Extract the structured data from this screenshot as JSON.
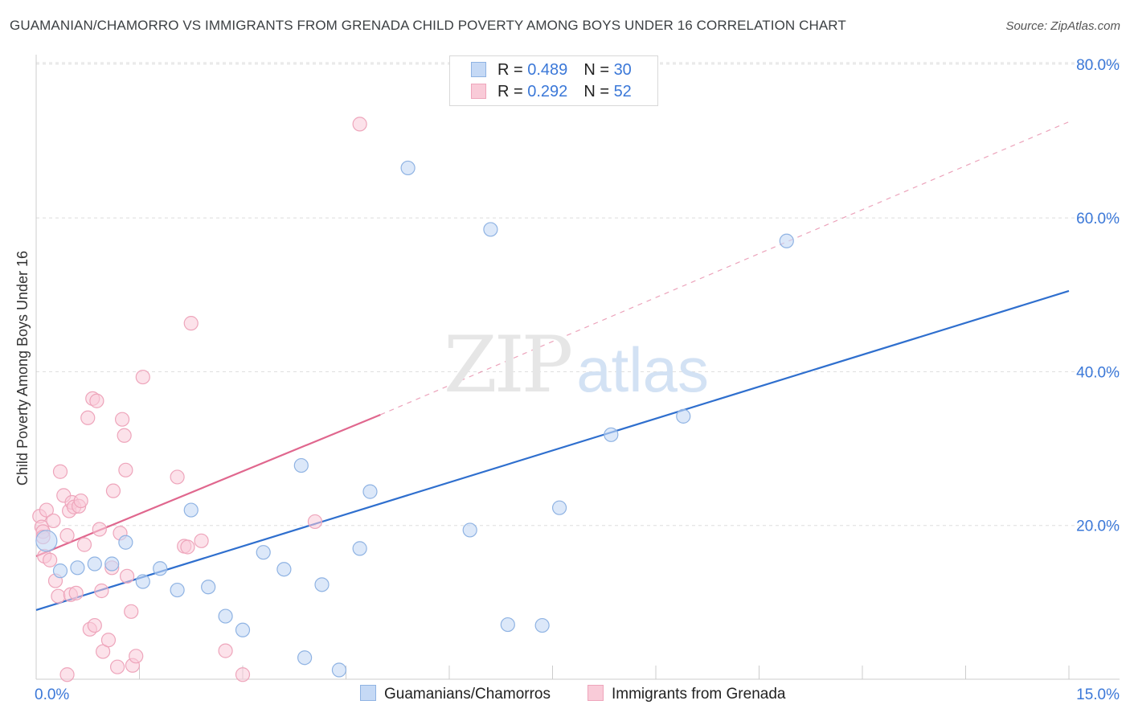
{
  "title": "GUAMANIAN/CHAMORRO VS IMMIGRANTS FROM GRENADA CHILD POVERTY AMONG BOYS UNDER 16 CORRELATION CHART",
  "source": "Source: ZipAtlas.com",
  "watermark": {
    "zip": "ZIP",
    "atlas": "atlas"
  },
  "legend": {
    "r_label": "R = ",
    "n_label": "N = ",
    "series": [
      {
        "r": "0.489",
        "n": "30"
      },
      {
        "r": "0.292",
        "n": "52"
      }
    ]
  },
  "bottom_legend": [
    "Guamanians/Chamorros",
    "Immigrants from Grenada"
  ],
  "colors": {
    "blue_fill": "#c5d9f5",
    "blue_stroke": "#8fb3e3",
    "blue_line": "#2f6fce",
    "pink_fill": "#f9cbd8",
    "pink_stroke": "#eea5bb",
    "pink_line": "#e0678e",
    "tick_label": "#3b78d8",
    "grid": "#dddddd"
  },
  "chart_data": {
    "type": "scatter",
    "title": "GUAMANIAN/CHAMORRO VS IMMIGRANTS FROM GRENADA CHILD POVERTY AMONG BOYS UNDER 16 CORRELATION CHART",
    "xlabel": "",
    "ylabel": "Child Poverty Among Boys Under 16",
    "xlim": [
      0,
      15
    ],
    "ylim": [
      0,
      80
    ],
    "x_tick_labels": [
      "0.0%",
      "15.0%"
    ],
    "y_ticks": [
      20,
      40,
      60,
      80
    ],
    "y_tick_labels": [
      "20.0%",
      "40.0%",
      "60.0%",
      "80.0%"
    ],
    "grid": true,
    "legend_position": "top-center",
    "series": [
      {
        "name": "Guamanians/Chamorros",
        "color": "#c5d9f5",
        "points": [
          [
            0.15,
            18.0
          ],
          [
            0.35,
            14.1
          ],
          [
            0.6,
            14.5
          ],
          [
            0.85,
            15.0
          ],
          [
            1.1,
            15.0
          ],
          [
            1.3,
            17.8
          ],
          [
            1.55,
            12.7
          ],
          [
            1.8,
            14.4
          ],
          [
            2.05,
            11.6
          ],
          [
            2.25,
            22.0
          ],
          [
            2.5,
            12.0
          ],
          [
            2.75,
            8.2
          ],
          [
            3.0,
            6.4
          ],
          [
            3.3,
            16.5
          ],
          [
            3.6,
            14.3
          ],
          [
            3.85,
            27.8
          ],
          [
            3.9,
            2.8
          ],
          [
            4.15,
            12.3
          ],
          [
            4.4,
            1.2
          ],
          [
            4.7,
            17.0
          ],
          [
            4.85,
            24.4
          ],
          [
            5.4,
            66.5
          ],
          [
            6.3,
            19.4
          ],
          [
            6.6,
            58.5
          ],
          [
            6.85,
            7.1
          ],
          [
            7.35,
            7.0
          ],
          [
            7.6,
            22.3
          ],
          [
            8.35,
            31.8
          ],
          [
            9.4,
            34.2
          ],
          [
            10.9,
            57.0
          ]
        ],
        "trend": {
          "x": [
            0,
            15
          ],
          "y": [
            9.0,
            50.5
          ],
          "style": "solid"
        }
      },
      {
        "name": "Immigrants from Grenada",
        "color": "#f9cbd8",
        "points": [
          [
            0.05,
            21.2
          ],
          [
            0.08,
            19.8
          ],
          [
            0.1,
            19.2
          ],
          [
            0.12,
            16.0
          ],
          [
            0.15,
            22.0
          ],
          [
            0.2,
            15.5
          ],
          [
            0.25,
            20.6
          ],
          [
            0.28,
            12.8
          ],
          [
            0.32,
            10.8
          ],
          [
            0.35,
            27.0
          ],
          [
            0.4,
            23.9
          ],
          [
            0.45,
            18.7
          ],
          [
            0.48,
            21.9
          ],
          [
            0.5,
            11.0
          ],
          [
            0.52,
            23.0
          ],
          [
            0.55,
            22.4
          ],
          [
            0.58,
            11.2
          ],
          [
            0.62,
            22.5
          ],
          [
            0.65,
            23.2
          ],
          [
            0.7,
            17.5
          ],
          [
            0.75,
            34.0
          ],
          [
            0.78,
            6.5
          ],
          [
            0.82,
            36.5
          ],
          [
            0.85,
            7.0
          ],
          [
            0.88,
            36.2
          ],
          [
            0.92,
            19.5
          ],
          [
            0.95,
            11.5
          ],
          [
            0.97,
            3.6
          ],
          [
            1.05,
            5.1
          ],
          [
            1.1,
            14.5
          ],
          [
            1.12,
            24.5
          ],
          [
            1.18,
            1.6
          ],
          [
            1.22,
            19.0
          ],
          [
            1.25,
            33.8
          ],
          [
            1.28,
            31.7
          ],
          [
            1.3,
            27.2
          ],
          [
            1.32,
            13.4
          ],
          [
            1.38,
            8.8
          ],
          [
            1.4,
            1.8
          ],
          [
            1.45,
            3.0
          ],
          [
            1.55,
            39.3
          ],
          [
            0.45,
            0.6
          ],
          [
            2.05,
            26.3
          ],
          [
            2.15,
            17.3
          ],
          [
            2.2,
            17.2
          ],
          [
            2.25,
            46.3
          ],
          [
            2.4,
            18.0
          ],
          [
            2.75,
            3.7
          ],
          [
            3.0,
            0.6
          ],
          [
            4.05,
            20.5
          ],
          [
            4.7,
            72.2
          ],
          [
            0.1,
            18.5
          ]
        ],
        "trend": {
          "x": [
            0,
            5
          ],
          "y": [
            16.0,
            34.4
          ],
          "style": "solid",
          "extension": {
            "x": [
              5,
              15
            ],
            "y": [
              34.4,
              72.5
            ],
            "style": "dashed"
          }
        }
      }
    ]
  }
}
